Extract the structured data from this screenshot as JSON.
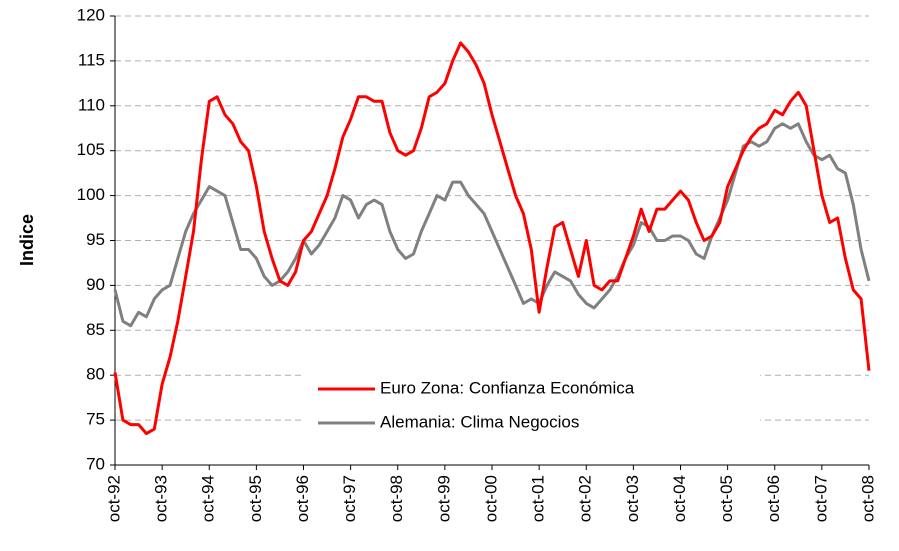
{
  "chart_data": {
    "type": "line",
    "ylabel": "Indice",
    "categories": [
      "oct-92",
      null,
      null,
      null,
      null,
      null,
      "oct-93",
      null,
      null,
      null,
      null,
      null,
      "oct-94",
      null,
      null,
      null,
      null,
      null,
      "oct-95",
      null,
      null,
      null,
      null,
      null,
      "oct-96",
      null,
      null,
      null,
      null,
      null,
      "oct-97",
      null,
      null,
      null,
      null,
      null,
      "oct-98",
      null,
      null,
      null,
      null,
      null,
      "oct-99",
      null,
      null,
      null,
      null,
      null,
      "oct-00",
      null,
      null,
      null,
      null,
      null,
      "oct-01",
      null,
      null,
      null,
      null,
      null,
      "oct-02",
      null,
      null,
      null,
      null,
      null,
      "oct-03",
      null,
      null,
      null,
      null,
      null,
      "oct-04",
      null,
      null,
      null,
      null,
      null,
      "oct-05",
      null,
      null,
      null,
      null,
      null,
      "oct-06",
      null,
      null,
      null,
      null,
      null,
      "oct-07",
      null,
      null,
      null,
      null,
      null,
      "oct-08"
    ],
    "series": [
      {
        "name": "Euro Zona: Confianza Económica",
        "color": "#ff0000",
        "values": [
          80.3,
          75,
          74.5,
          74.5,
          73.5,
          74,
          79,
          82,
          86,
          91,
          96,
          104,
          110.5,
          111,
          109,
          108,
          106,
          105,
          101,
          96,
          93,
          90.5,
          90,
          91.5,
          95,
          96,
          98,
          100,
          103,
          106.5,
          108.5,
          111,
          111,
          110.5,
          110.5,
          107,
          105,
          104.5,
          105,
          107.5,
          111,
          111.5,
          112.5,
          115,
          117,
          116,
          114.5,
          112.5,
          109,
          106,
          103,
          100,
          98,
          94,
          87,
          92,
          96.5,
          97,
          94,
          91,
          95,
          90,
          89.5,
          90.5,
          90.5,
          93,
          95.5,
          98.5,
          96,
          98.5,
          98.5,
          99.5,
          100.5,
          99.5,
          97,
          95,
          95.5,
          97,
          101,
          103,
          105,
          106.5,
          107.5,
          108,
          109.5,
          109,
          110.5,
          111.5,
          110,
          105,
          100,
          97,
          97.5,
          93,
          89.5,
          88.5,
          80.5
        ]
      },
      {
        "name": "Alemania: Clima Negocios",
        "color": "#808080",
        "values": [
          89.5,
          86,
          85.5,
          87,
          86.5,
          88.5,
          89.5,
          90,
          93,
          96,
          98,
          99.5,
          101,
          100.5,
          100,
          97,
          94,
          94,
          93,
          91,
          90,
          90.5,
          91.5,
          93,
          95,
          93.5,
          94.5,
          96,
          97.5,
          100,
          99.5,
          97.5,
          99,
          99.5,
          99,
          96,
          94,
          93,
          93.5,
          96,
          98,
          100,
          99.5,
          101.5,
          101.5,
          100,
          99,
          98,
          96,
          94,
          92,
          90,
          88,
          88.5,
          88,
          90,
          91.5,
          91,
          90.5,
          89,
          88,
          87.5,
          88.5,
          89.5,
          91,
          93,
          94.5,
          97,
          96.5,
          95,
          95,
          95.5,
          95.5,
          95,
          93.5,
          93,
          95.5,
          97.5,
          99.5,
          102.5,
          105.5,
          106,
          105.5,
          106,
          107.5,
          108,
          107.5,
          108,
          106,
          104.5,
          104,
          104.5,
          103,
          102.5,
          99,
          94,
          90.5
        ]
      }
    ],
    "ylim": [
      70,
      120
    ],
    "yticks": [
      70,
      75,
      80,
      85,
      90,
      95,
      100,
      105,
      110,
      115,
      120
    ],
    "grid": true
  }
}
